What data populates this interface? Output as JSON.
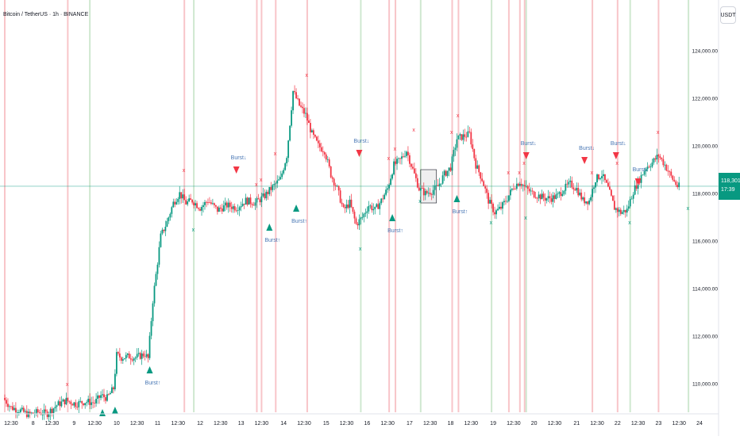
{
  "header": {
    "title": "Bitcoin / TetherUS · 1h · BINANCE"
  },
  "price_axis": {
    "unit_label": "USDT",
    "current_price": "118,301.82",
    "countdown": "17:39"
  },
  "colors": {
    "up": "#089981",
    "down": "#f23645",
    "red_band": "#f8c5c9",
    "green_band": "#cfe8d0",
    "marker_label": "#4a78b5",
    "axis_text": "#131722",
    "price_line": "#089981"
  },
  "chart_data": {
    "type": "candlestick",
    "title": "Bitcoin / TetherUS · 1h · BINANCE",
    "ylim": [
      108800,
      125800
    ],
    "y_ticks": [
      110000,
      112000,
      114000,
      116000,
      118000,
      120000,
      122000,
      124000
    ],
    "y_tick_labels": [
      "110,000.00",
      "112,000.00",
      "114,000.00",
      "116,000.00",
      "118,000.00",
      "120,000.00",
      "122,000.00",
      "124,000.00"
    ],
    "x_range": [
      0,
      428
    ],
    "x_ticks": [
      {
        "label": "12:30",
        "x": 4
      },
      {
        "label": "8",
        "x": 18
      },
      {
        "label": "12:30",
        "x": 30
      },
      {
        "label": "9",
        "x": 44
      },
      {
        "label": "12:30",
        "x": 57
      },
      {
        "label": "10",
        "x": 71
      },
      {
        "label": "12:30",
        "x": 84
      },
      {
        "label": "11",
        "x": 97
      },
      {
        "label": "12:30",
        "x": 110
      },
      {
        "label": "12",
        "x": 124
      },
      {
        "label": "12:30",
        "x": 137
      },
      {
        "label": "13",
        "x": 150
      },
      {
        "label": "12:30",
        "x": 163
      },
      {
        "label": "14",
        "x": 177
      },
      {
        "label": "12:30",
        "x": 190
      },
      {
        "label": "15",
        "x": 204
      },
      {
        "label": "12:30",
        "x": 217
      },
      {
        "label": "16",
        "x": 230
      },
      {
        "label": "12:30",
        "x": 243
      },
      {
        "label": "17",
        "x": 257
      },
      {
        "label": "12:30",
        "x": 270
      },
      {
        "label": "18",
        "x": 283
      },
      {
        "label": "12:30",
        "x": 296
      },
      {
        "label": "19",
        "x": 310
      },
      {
        "label": "12:30",
        "x": 323
      },
      {
        "label": "20",
        "x": 336
      },
      {
        "label": "12:30",
        "x": 349
      },
      {
        "label": "21",
        "x": 363
      },
      {
        "label": "12:30",
        "x": 376
      },
      {
        "label": "22",
        "x": 389
      },
      {
        "label": "12:30",
        "x": 402
      },
      {
        "label": "23",
        "x": 415
      },
      {
        "label": "12:30",
        "x": 428
      },
      {
        "label": "24",
        "x": 441
      }
    ],
    "price_path": [
      [
        0,
        109400
      ],
      [
        5,
        109000
      ],
      [
        10,
        108900
      ],
      [
        16,
        108700
      ],
      [
        22,
        108800
      ],
      [
        28,
        108750
      ],
      [
        34,
        109100
      ],
      [
        40,
        109300
      ],
      [
        46,
        109150
      ],
      [
        52,
        109250
      ],
      [
        58,
        109200
      ],
      [
        62,
        109500
      ],
      [
        66,
        109400
      ],
      [
        70,
        109800
      ],
      [
        72,
        111200
      ],
      [
        75,
        111100
      ],
      [
        80,
        111150
      ],
      [
        84,
        111100
      ],
      [
        90,
        111250
      ],
      [
        92,
        111050
      ],
      [
        95,
        113500
      ],
      [
        100,
        116200
      ],
      [
        104,
        116800
      ],
      [
        108,
        117600
      ],
      [
        112,
        118000
      ],
      [
        116,
        117600
      ],
      [
        120,
        117700
      ],
      [
        125,
        117400
      ],
      [
        130,
        117700
      ],
      [
        136,
        117300
      ],
      [
        142,
        117500
      ],
      [
        148,
        117400
      ],
      [
        154,
        117700
      ],
      [
        160,
        117600
      ],
      [
        166,
        117900
      ],
      [
        170,
        118200
      ],
      [
        176,
        118600
      ],
      [
        180,
        119600
      ],
      [
        184,
        122300
      ],
      [
        188,
        121700
      ],
      [
        192,
        121300
      ],
      [
        196,
        120500
      ],
      [
        200,
        120000
      ],
      [
        204,
        119800
      ],
      [
        208,
        118800
      ],
      [
        212,
        118200
      ],
      [
        216,
        117300
      ],
      [
        220,
        117600
      ],
      [
        224,
        116700
      ],
      [
        228,
        117000
      ],
      [
        232,
        117500
      ],
      [
        236,
        117300
      ],
      [
        240,
        117700
      ],
      [
        244,
        118200
      ],
      [
        248,
        119200
      ],
      [
        252,
        119400
      ],
      [
        256,
        119800
      ],
      [
        260,
        119000
      ],
      [
        264,
        118200
      ],
      [
        268,
        118000
      ],
      [
        272,
        118100
      ],
      [
        276,
        118300
      ],
      [
        280,
        118800
      ],
      [
        284,
        119100
      ],
      [
        288,
        120300
      ],
      [
        292,
        120400
      ],
      [
        296,
        120500
      ],
      [
        300,
        119200
      ],
      [
        304,
        118600
      ],
      [
        308,
        117700
      ],
      [
        312,
        117200
      ],
      [
        316,
        117400
      ],
      [
        320,
        117800
      ],
      [
        324,
        118300
      ],
      [
        328,
        118500
      ],
      [
        332,
        118200
      ],
      [
        336,
        118000
      ],
      [
        340,
        117900
      ],
      [
        344,
        117800
      ],
      [
        348,
        117800
      ],
      [
        352,
        117900
      ],
      [
        356,
        118200
      ],
      [
        360,
        118400
      ],
      [
        364,
        118200
      ],
      [
        368,
        117700
      ],
      [
        372,
        117700
      ],
      [
        376,
        118600
      ],
      [
        380,
        118800
      ],
      [
        384,
        118200
      ],
      [
        388,
        117400
      ],
      [
        392,
        117200
      ],
      [
        396,
        117300
      ],
      [
        400,
        118100
      ],
      [
        404,
        118600
      ],
      [
        408,
        119100
      ],
      [
        412,
        119300
      ],
      [
        416,
        119600
      ],
      [
        420,
        119200
      ],
      [
        424,
        118700
      ],
      [
        428,
        118300
      ]
    ],
    "red_bands_x": [
      0,
      40,
      114,
      160,
      163,
      172,
      192,
      244,
      248,
      284,
      288,
      320,
      327,
      330,
      373,
      389,
      415
    ],
    "green_bands_x": [
      54,
      120,
      226,
      264,
      309,
      331,
      397,
      434
    ],
    "signals": [
      {
        "kind": "down",
        "x": 147,
        "y": 118900,
        "label": "Burst↓"
      },
      {
        "kind": "down",
        "x": 225,
        "y": 119600,
        "label": "Burst↓"
      },
      {
        "kind": "down",
        "x": 331,
        "y": 119500,
        "label": "Burst↓"
      },
      {
        "kind": "down",
        "x": 368,
        "y": 119300,
        "label": "Burst↓"
      },
      {
        "kind": "down",
        "x": 388,
        "y": 119500,
        "label": "Burst↓"
      },
      {
        "kind": "down",
        "x": 402,
        "y": 118400,
        "label": "Burst↓"
      },
      {
        "kind": "up",
        "x": 92,
        "y": 110700,
        "label": "Burst↑"
      },
      {
        "kind": "up",
        "x": 168,
        "y": 116700,
        "label": "Burst↑"
      },
      {
        "kind": "up",
        "x": 185,
        "y": 117500,
        "label": "Burst↑"
      },
      {
        "kind": "up",
        "x": 246,
        "y": 117100,
        "label": "Burst↑"
      },
      {
        "kind": "up",
        "x": 287,
        "y": 117900,
        "label": "Burst↑"
      },
      {
        "kind": "up",
        "x": 62,
        "y": 108900,
        "label": ""
      },
      {
        "kind": "up",
        "x": 70,
        "y": 109000,
        "label": ""
      }
    ],
    "x_marks": [
      {
        "x": 40,
        "y": 109900,
        "color": "down"
      },
      {
        "x": 114,
        "y": 118900,
        "color": "down"
      },
      {
        "x": 120,
        "y": 116400,
        "color": "up"
      },
      {
        "x": 160,
        "y": 118300,
        "color": "down"
      },
      {
        "x": 163,
        "y": 118500,
        "color": "down"
      },
      {
        "x": 172,
        "y": 119600,
        "color": "down"
      },
      {
        "x": 192,
        "y": 122900,
        "color": "down"
      },
      {
        "x": 226,
        "y": 115600,
        "color": "up"
      },
      {
        "x": 244,
        "y": 119400,
        "color": "down"
      },
      {
        "x": 248,
        "y": 119800,
        "color": "down"
      },
      {
        "x": 260,
        "y": 120600,
        "color": "down"
      },
      {
        "x": 264,
        "y": 117600,
        "color": "up"
      },
      {
        "x": 284,
        "y": 120500,
        "color": "down"
      },
      {
        "x": 288,
        "y": 121200,
        "color": "down"
      },
      {
        "x": 309,
        "y": 116700,
        "color": "up"
      },
      {
        "x": 320,
        "y": 118800,
        "color": "down"
      },
      {
        "x": 327,
        "y": 118800,
        "color": "down"
      },
      {
        "x": 330,
        "y": 119200,
        "color": "down"
      },
      {
        "x": 331,
        "y": 116900,
        "color": "up"
      },
      {
        "x": 373,
        "y": 118800,
        "color": "down"
      },
      {
        "x": 389,
        "y": 119200,
        "color": "down"
      },
      {
        "x": 397,
        "y": 116700,
        "color": "up"
      },
      {
        "x": 415,
        "y": 120500,
        "color": "down"
      },
      {
        "x": 434,
        "y": 117300,
        "color": "up"
      }
    ],
    "box": {
      "x0": 264,
      "x1": 274,
      "y0": 117600,
      "y1": 119000
    }
  }
}
